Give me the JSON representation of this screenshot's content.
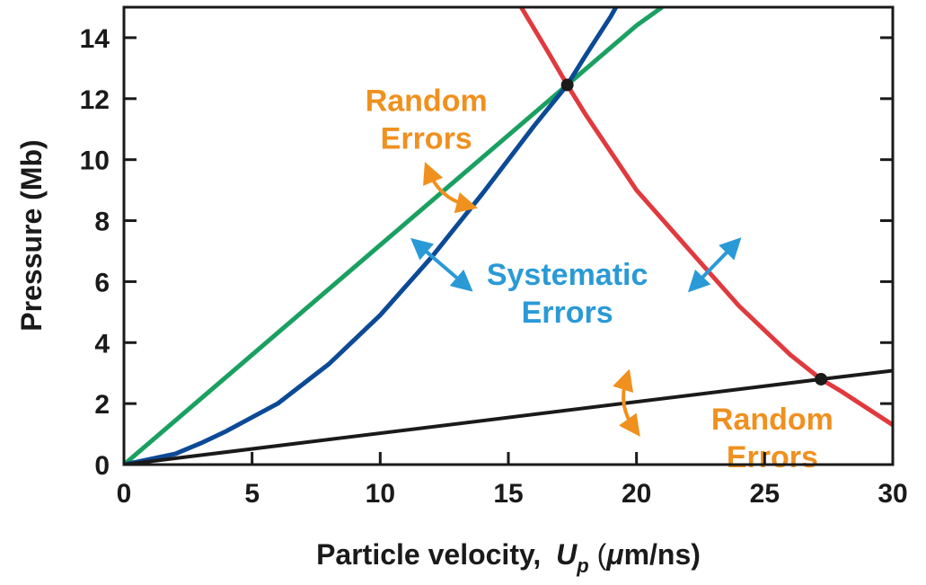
{
  "chart_data": {
    "type": "line",
    "title": "",
    "xlabel": "Particle velocity,",
    "xlabel_var": "U",
    "xlabel_sub": "p",
    "xlabel_unit_open": " (",
    "xlabel_mu": "μ",
    "xlabel_unit_rest": "m/ns)",
    "ylabel": "Pressure (Mb)",
    "xlim": [
      0,
      30
    ],
    "ylim": [
      0,
      15
    ],
    "xticks": [
      0,
      5,
      10,
      15,
      20,
      25,
      30
    ],
    "yticks": [
      0,
      2,
      4,
      6,
      8,
      10,
      12,
      14
    ],
    "grid": false,
    "series": [
      {
        "color": "#1aa060",
        "x": [
          0,
          5,
          10,
          15,
          20,
          21
        ],
        "y": [
          0,
          3.6,
          7.2,
          10.8,
          14.4,
          15.0
        ]
      },
      {
        "color": "#0c4a96",
        "x": [
          0,
          2,
          3,
          4,
          6,
          8,
          10,
          12,
          14,
          16,
          17.3,
          18,
          19,
          19.2
        ],
        "y": [
          0,
          0.35,
          0.7,
          1.1,
          2.0,
          3.3,
          4.9,
          6.8,
          8.9,
          11.1,
          12.45,
          13.4,
          14.7,
          15.0
        ]
      },
      {
        "color": "#e03a3e",
        "x": [
          15.5,
          16.5,
          17.3,
          18,
          20,
          22,
          24,
          26,
          27.2,
          28,
          30
        ],
        "y": [
          15.0,
          13.6,
          12.45,
          11.5,
          9.0,
          7.1,
          5.2,
          3.6,
          2.8,
          2.4,
          1.3
        ]
      },
      {
        "color": "#1a1a1a",
        "x": [
          0,
          27.2,
          30
        ],
        "y": [
          0,
          2.8,
          3.08
        ]
      }
    ],
    "intersections": [
      {
        "x": 17.3,
        "y": 12.45
      },
      {
        "x": 27.2,
        "y": 2.8
      }
    ],
    "annotations": [
      {
        "lines": [
          "Random",
          "Errors"
        ],
        "color": "#f0901e",
        "x": 11.8,
        "y": 11.6
      },
      {
        "lines": [
          "Systematic",
          "Errors"
        ],
        "color": "#2a9ad6",
        "x": 17.3,
        "y": 5.9
      },
      {
        "lines": [
          "Random",
          "Errors"
        ],
        "color": "#f0901e",
        "x": 25.3,
        "y": 1.15
      }
    ],
    "arrows": [
      {
        "color": "#f0901e",
        "from": [
          11.9,
          9.6
        ],
        "to": [
          13.4,
          8.5
        ],
        "curved": true
      },
      {
        "color": "#2a9ad6",
        "from": [
          11.5,
          7.2
        ],
        "to": [
          13.3,
          5.9
        ],
        "curved": false
      },
      {
        "color": "#2a9ad6",
        "from": [
          22.3,
          5.9
        ],
        "to": [
          23.8,
          7.2
        ],
        "curved": false
      },
      {
        "color": "#f0901e",
        "from": [
          19.6,
          2.8
        ],
        "to": [
          19.9,
          1.2
        ],
        "curved": true
      }
    ]
  }
}
